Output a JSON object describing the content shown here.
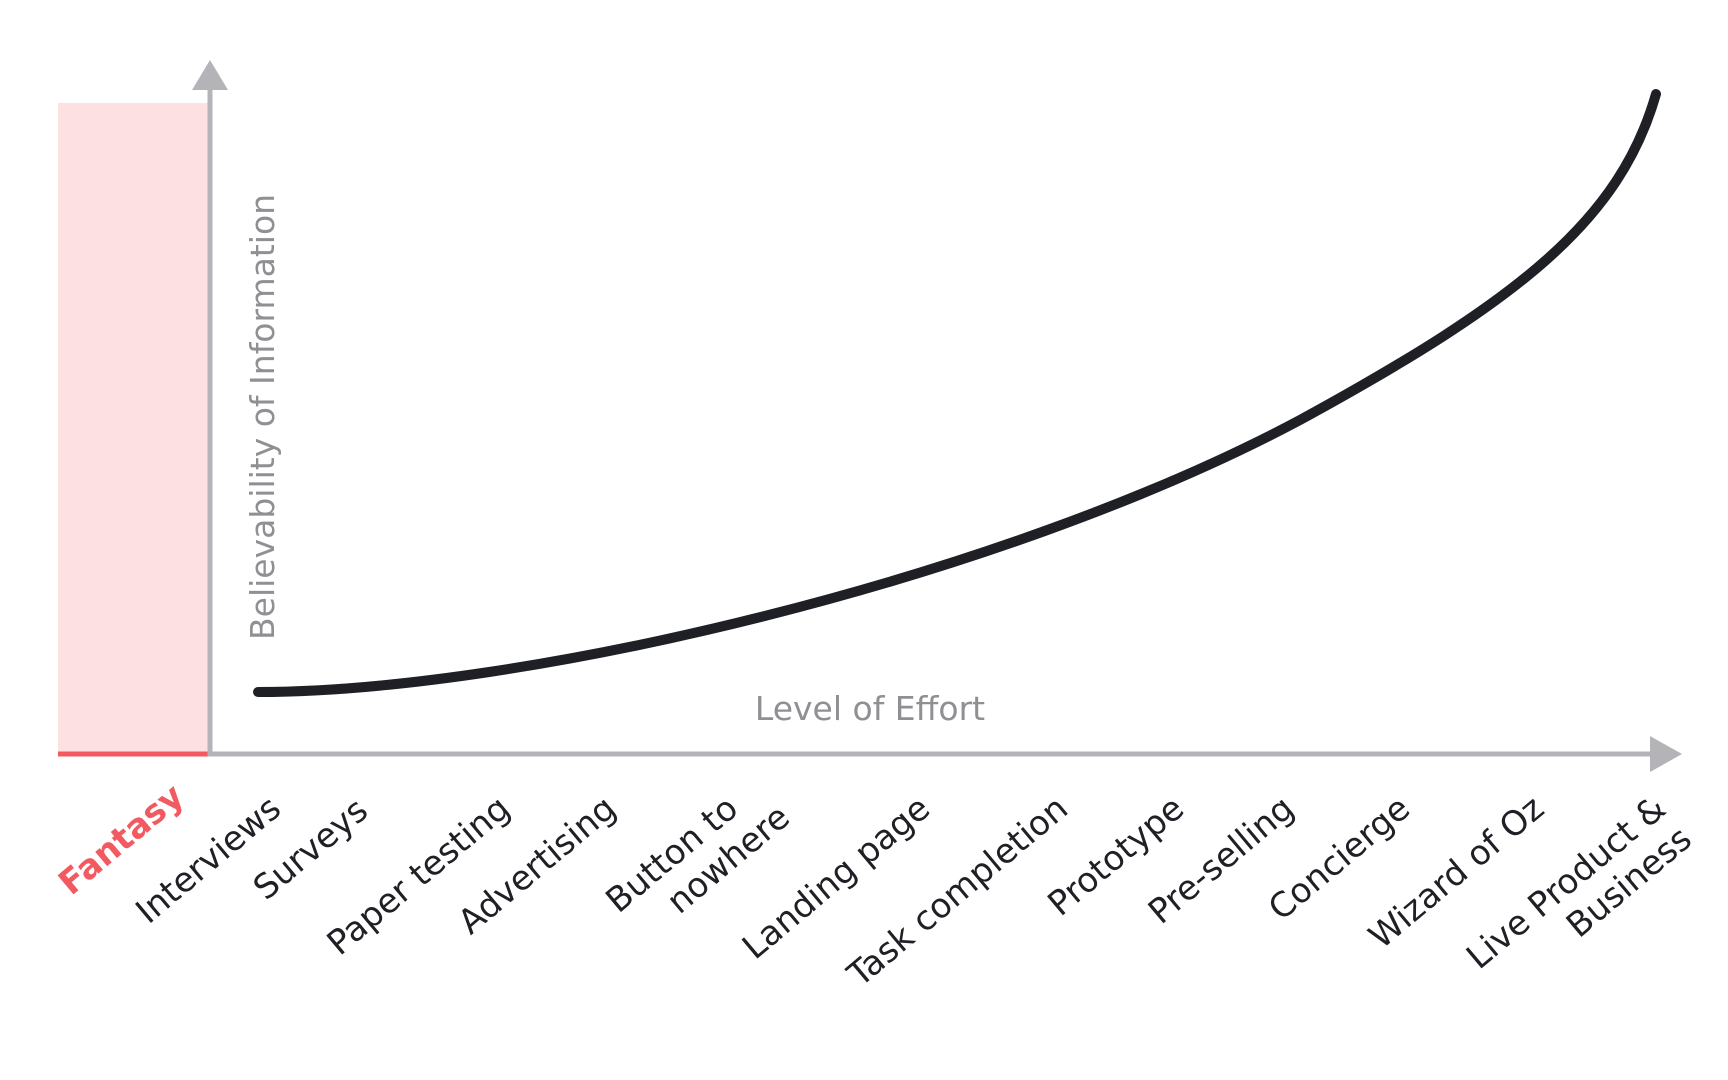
{
  "y_axis_label": "Believability of Information",
  "x_axis_label": "Level of Effort",
  "fantasy_label": "Fantasy",
  "methods": [
    "Interviews",
    "Surveys",
    "Paper testing",
    "Advertising",
    "Button to nowhere",
    "Landing page",
    "Task completion",
    "Prototype",
    "Pre-selling",
    "Concierge",
    "Wizard of Oz",
    "Live Product & Business"
  ],
  "colors": {
    "fantasy_fill": "#fde0e2",
    "fantasy_accent": "#f25a62",
    "axis": "#b3b3b8",
    "curve": "#1f1f26",
    "axis_text": "#8f8f94",
    "label_text": "#1f1f26"
  }
}
